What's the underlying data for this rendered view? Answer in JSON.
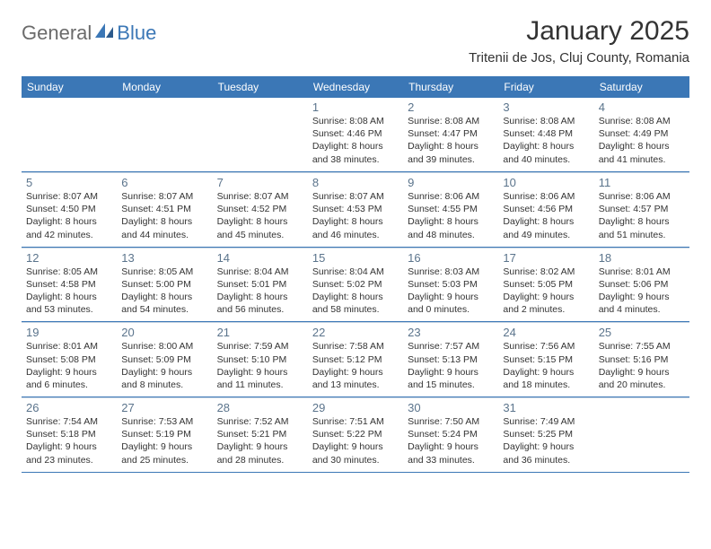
{
  "logo": {
    "general": "General",
    "blue": "Blue"
  },
  "header": {
    "title": "January 2025",
    "location": "Tritenii de Jos, Cluj County, Romania"
  },
  "colors": {
    "header_bar": "#3b77b6",
    "daynum": "#5b748c",
    "text": "#333333",
    "logo_gray": "#6b6b6b",
    "logo_blue": "#3b77b6",
    "row_border": "#3b77b6",
    "cell_top_border": "#c9d6e3",
    "background": "#ffffff"
  },
  "typography": {
    "title_fontsize": 30,
    "location_fontsize": 15,
    "dayheader_fontsize": 12,
    "daynum_fontsize": 13,
    "info_fontsize": 10.5
  },
  "days_of_week": [
    "Sunday",
    "Monday",
    "Tuesday",
    "Wednesday",
    "Thursday",
    "Friday",
    "Saturday"
  ],
  "weeks": [
    [
      null,
      null,
      null,
      {
        "n": "1",
        "sr": "8:08 AM",
        "ss": "4:46 PM",
        "dl": "8 hours and 38 minutes."
      },
      {
        "n": "2",
        "sr": "8:08 AM",
        "ss": "4:47 PM",
        "dl": "8 hours and 39 minutes."
      },
      {
        "n": "3",
        "sr": "8:08 AM",
        "ss": "4:48 PM",
        "dl": "8 hours and 40 minutes."
      },
      {
        "n": "4",
        "sr": "8:08 AM",
        "ss": "4:49 PM",
        "dl": "8 hours and 41 minutes."
      }
    ],
    [
      {
        "n": "5",
        "sr": "8:07 AM",
        "ss": "4:50 PM",
        "dl": "8 hours and 42 minutes."
      },
      {
        "n": "6",
        "sr": "8:07 AM",
        "ss": "4:51 PM",
        "dl": "8 hours and 44 minutes."
      },
      {
        "n": "7",
        "sr": "8:07 AM",
        "ss": "4:52 PM",
        "dl": "8 hours and 45 minutes."
      },
      {
        "n": "8",
        "sr": "8:07 AM",
        "ss": "4:53 PM",
        "dl": "8 hours and 46 minutes."
      },
      {
        "n": "9",
        "sr": "8:06 AM",
        "ss": "4:55 PM",
        "dl": "8 hours and 48 minutes."
      },
      {
        "n": "10",
        "sr": "8:06 AM",
        "ss": "4:56 PM",
        "dl": "8 hours and 49 minutes."
      },
      {
        "n": "11",
        "sr": "8:06 AM",
        "ss": "4:57 PM",
        "dl": "8 hours and 51 minutes."
      }
    ],
    [
      {
        "n": "12",
        "sr": "8:05 AM",
        "ss": "4:58 PM",
        "dl": "8 hours and 53 minutes."
      },
      {
        "n": "13",
        "sr": "8:05 AM",
        "ss": "5:00 PM",
        "dl": "8 hours and 54 minutes."
      },
      {
        "n": "14",
        "sr": "8:04 AM",
        "ss": "5:01 PM",
        "dl": "8 hours and 56 minutes."
      },
      {
        "n": "15",
        "sr": "8:04 AM",
        "ss": "5:02 PM",
        "dl": "8 hours and 58 minutes."
      },
      {
        "n": "16",
        "sr": "8:03 AM",
        "ss": "5:03 PM",
        "dl": "9 hours and 0 minutes."
      },
      {
        "n": "17",
        "sr": "8:02 AM",
        "ss": "5:05 PM",
        "dl": "9 hours and 2 minutes."
      },
      {
        "n": "18",
        "sr": "8:01 AM",
        "ss": "5:06 PM",
        "dl": "9 hours and 4 minutes."
      }
    ],
    [
      {
        "n": "19",
        "sr": "8:01 AM",
        "ss": "5:08 PM",
        "dl": "9 hours and 6 minutes."
      },
      {
        "n": "20",
        "sr": "8:00 AM",
        "ss": "5:09 PM",
        "dl": "9 hours and 8 minutes."
      },
      {
        "n": "21",
        "sr": "7:59 AM",
        "ss": "5:10 PM",
        "dl": "9 hours and 11 minutes."
      },
      {
        "n": "22",
        "sr": "7:58 AM",
        "ss": "5:12 PM",
        "dl": "9 hours and 13 minutes."
      },
      {
        "n": "23",
        "sr": "7:57 AM",
        "ss": "5:13 PM",
        "dl": "9 hours and 15 minutes."
      },
      {
        "n": "24",
        "sr": "7:56 AM",
        "ss": "5:15 PM",
        "dl": "9 hours and 18 minutes."
      },
      {
        "n": "25",
        "sr": "7:55 AM",
        "ss": "5:16 PM",
        "dl": "9 hours and 20 minutes."
      }
    ],
    [
      {
        "n": "26",
        "sr": "7:54 AM",
        "ss": "5:18 PM",
        "dl": "9 hours and 23 minutes."
      },
      {
        "n": "27",
        "sr": "7:53 AM",
        "ss": "5:19 PM",
        "dl": "9 hours and 25 minutes."
      },
      {
        "n": "28",
        "sr": "7:52 AM",
        "ss": "5:21 PM",
        "dl": "9 hours and 28 minutes."
      },
      {
        "n": "29",
        "sr": "7:51 AM",
        "ss": "5:22 PM",
        "dl": "9 hours and 30 minutes."
      },
      {
        "n": "30",
        "sr": "7:50 AM",
        "ss": "5:24 PM",
        "dl": "9 hours and 33 minutes."
      },
      {
        "n": "31",
        "sr": "7:49 AM",
        "ss": "5:25 PM",
        "dl": "9 hours and 36 minutes."
      },
      null
    ]
  ],
  "labels": {
    "sunrise": "Sunrise:",
    "sunset": "Sunset:",
    "daylight": "Daylight:"
  }
}
